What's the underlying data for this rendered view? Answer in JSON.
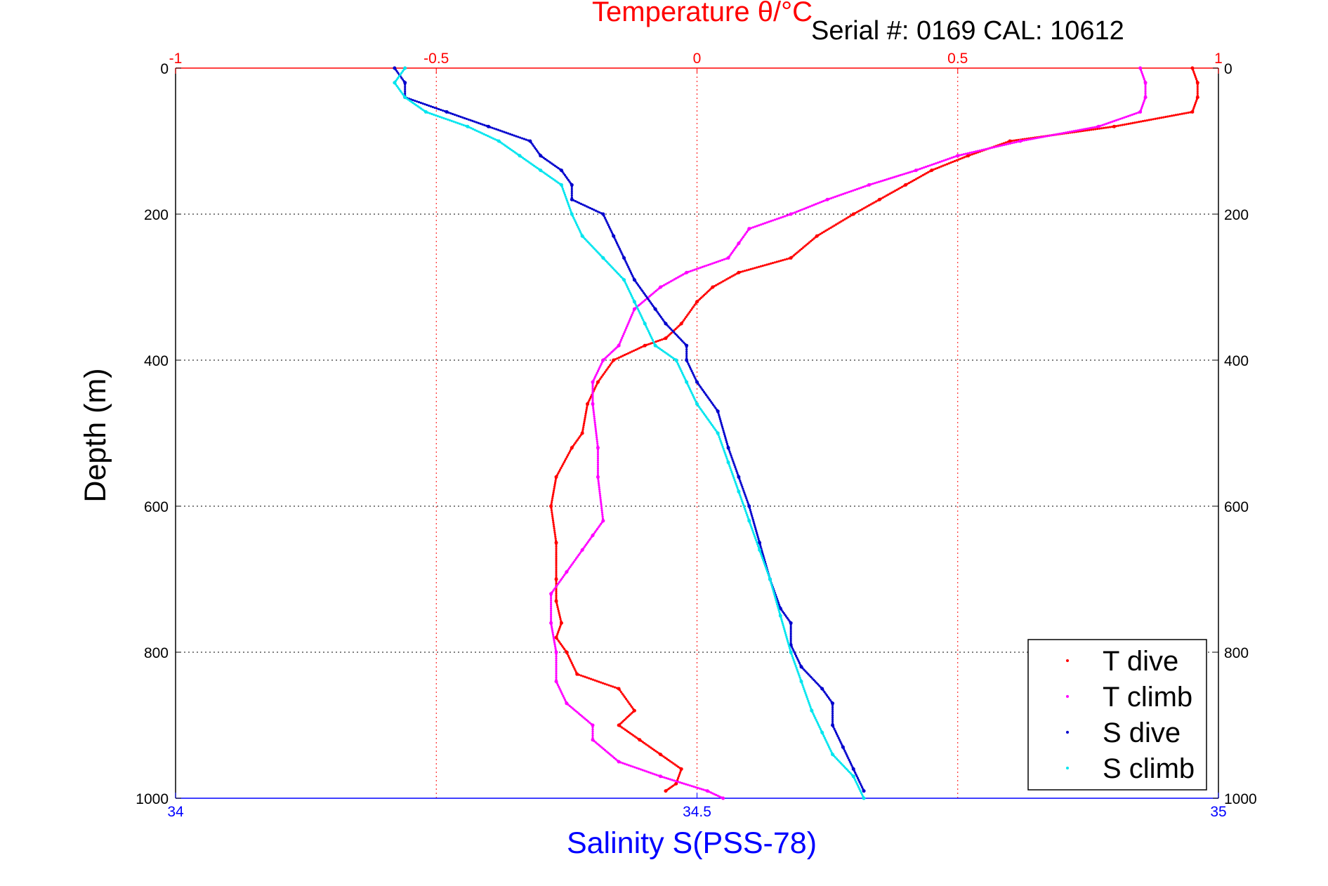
{
  "chart_data": {
    "type": "scatter",
    "title": "Temperature θ/°C",
    "subtitle": "Serial #: 0169 CAL: 10612",
    "xlabel": "Salinity S(PSS-78)",
    "ylabel": "Depth (m)",
    "x_top": {
      "label": "Temperature θ/°C",
      "lim": [
        -1,
        1
      ],
      "ticks": [
        "-1",
        "-0.5",
        "0",
        "0.5",
        "1"
      ]
    },
    "x_bottom": {
      "label": "Salinity S(PSS-78)",
      "lim": [
        34,
        35
      ],
      "ticks": [
        "34",
        "34.5",
        "35"
      ]
    },
    "ylim": [
      0,
      1000
    ],
    "y_reversed": true,
    "y_ticks": [
      "0",
      "200",
      "400",
      "600",
      "800",
      "1000"
    ],
    "grid": true,
    "legend_position": "bottom-right",
    "colors": {
      "t_dive": "#ff0000",
      "t_climb": "#ff00ff",
      "s_dive": "#0000cc",
      "s_climb": "#00e5ee",
      "top_axis": "#ff0000",
      "bottom_axis": "#0000ff"
    },
    "series": [
      {
        "name": "T dive",
        "axis": "temperature",
        "x": [
          0.95,
          0.96,
          0.96,
          0.95,
          0.8,
          0.6,
          0.52,
          0.45,
          0.4,
          0.35,
          0.3,
          0.23,
          0.18,
          0.08,
          0.03,
          0.0,
          -0.03,
          -0.06,
          -0.1,
          -0.16,
          -0.19,
          -0.21,
          -0.22,
          -0.24,
          -0.27,
          -0.28,
          -0.27,
          -0.27,
          -0.27,
          -0.26,
          -0.27,
          -0.25,
          -0.23,
          -0.15,
          -0.12,
          -0.15,
          -0.11,
          -0.07,
          -0.03,
          -0.04,
          -0.06
        ],
        "y": [
          0,
          20,
          40,
          60,
          80,
          100,
          120,
          140,
          160,
          180,
          200,
          230,
          260,
          280,
          300,
          320,
          350,
          370,
          380,
          400,
          430,
          460,
          500,
          520,
          560,
          600,
          650,
          700,
          730,
          760,
          780,
          800,
          830,
          850,
          880,
          900,
          920,
          940,
          960,
          980,
          990
        ]
      },
      {
        "name": "T climb",
        "axis": "temperature",
        "x": [
          0.85,
          0.86,
          0.86,
          0.85,
          0.77,
          0.62,
          0.5,
          0.42,
          0.33,
          0.25,
          0.18,
          0.1,
          0.08,
          0.06,
          -0.02,
          -0.07,
          -0.12,
          -0.15,
          -0.18,
          -0.2,
          -0.2,
          -0.19,
          -0.19,
          -0.18,
          -0.2,
          -0.22,
          -0.25,
          -0.28,
          -0.28,
          -0.27,
          -0.27,
          -0.25,
          -0.2,
          -0.2,
          -0.15,
          -0.07,
          0.02,
          0.05
        ],
        "y": [
          0,
          20,
          40,
          60,
          80,
          100,
          120,
          140,
          160,
          180,
          200,
          220,
          240,
          260,
          280,
          300,
          330,
          380,
          400,
          430,
          460,
          520,
          560,
          620,
          640,
          660,
          690,
          720,
          760,
          800,
          840,
          870,
          900,
          920,
          950,
          970,
          990,
          1000
        ]
      },
      {
        "name": "S dive",
        "axis": "salinity",
        "x": [
          34.21,
          34.22,
          34.22,
          34.26,
          34.3,
          34.34,
          34.35,
          34.37,
          34.38,
          34.38,
          34.41,
          34.42,
          34.43,
          34.44,
          34.46,
          34.47,
          34.49,
          34.49,
          34.5,
          34.52,
          34.53,
          34.54,
          34.55,
          34.56,
          34.57,
          34.58,
          34.59,
          34.59,
          34.6,
          34.62,
          34.63,
          34.63,
          34.64,
          34.65,
          34.66
        ],
        "y": [
          0,
          20,
          40,
          60,
          80,
          100,
          120,
          140,
          160,
          180,
          200,
          230,
          260,
          290,
          330,
          350,
          380,
          400,
          430,
          470,
          520,
          560,
          600,
          650,
          700,
          740,
          760,
          790,
          820,
          850,
          870,
          900,
          930,
          960,
          990
        ]
      },
      {
        "name": "S climb",
        "axis": "salinity",
        "x": [
          34.22,
          34.21,
          34.22,
          34.24,
          34.28,
          34.31,
          34.33,
          34.35,
          34.37,
          34.38,
          34.39,
          34.41,
          34.43,
          34.44,
          34.45,
          34.46,
          34.48,
          34.49,
          34.5,
          34.52,
          34.53,
          34.54,
          34.55,
          34.56,
          34.57,
          34.58,
          34.59,
          34.6,
          34.61,
          34.62,
          34.63,
          34.65,
          34.66
        ],
        "y": [
          0,
          20,
          40,
          60,
          80,
          100,
          120,
          140,
          160,
          200,
          230,
          260,
          290,
          320,
          350,
          380,
          400,
          430,
          460,
          500,
          540,
          580,
          620,
          660,
          700,
          750,
          800,
          840,
          880,
          910,
          940,
          970,
          1000
        ]
      }
    ]
  }
}
